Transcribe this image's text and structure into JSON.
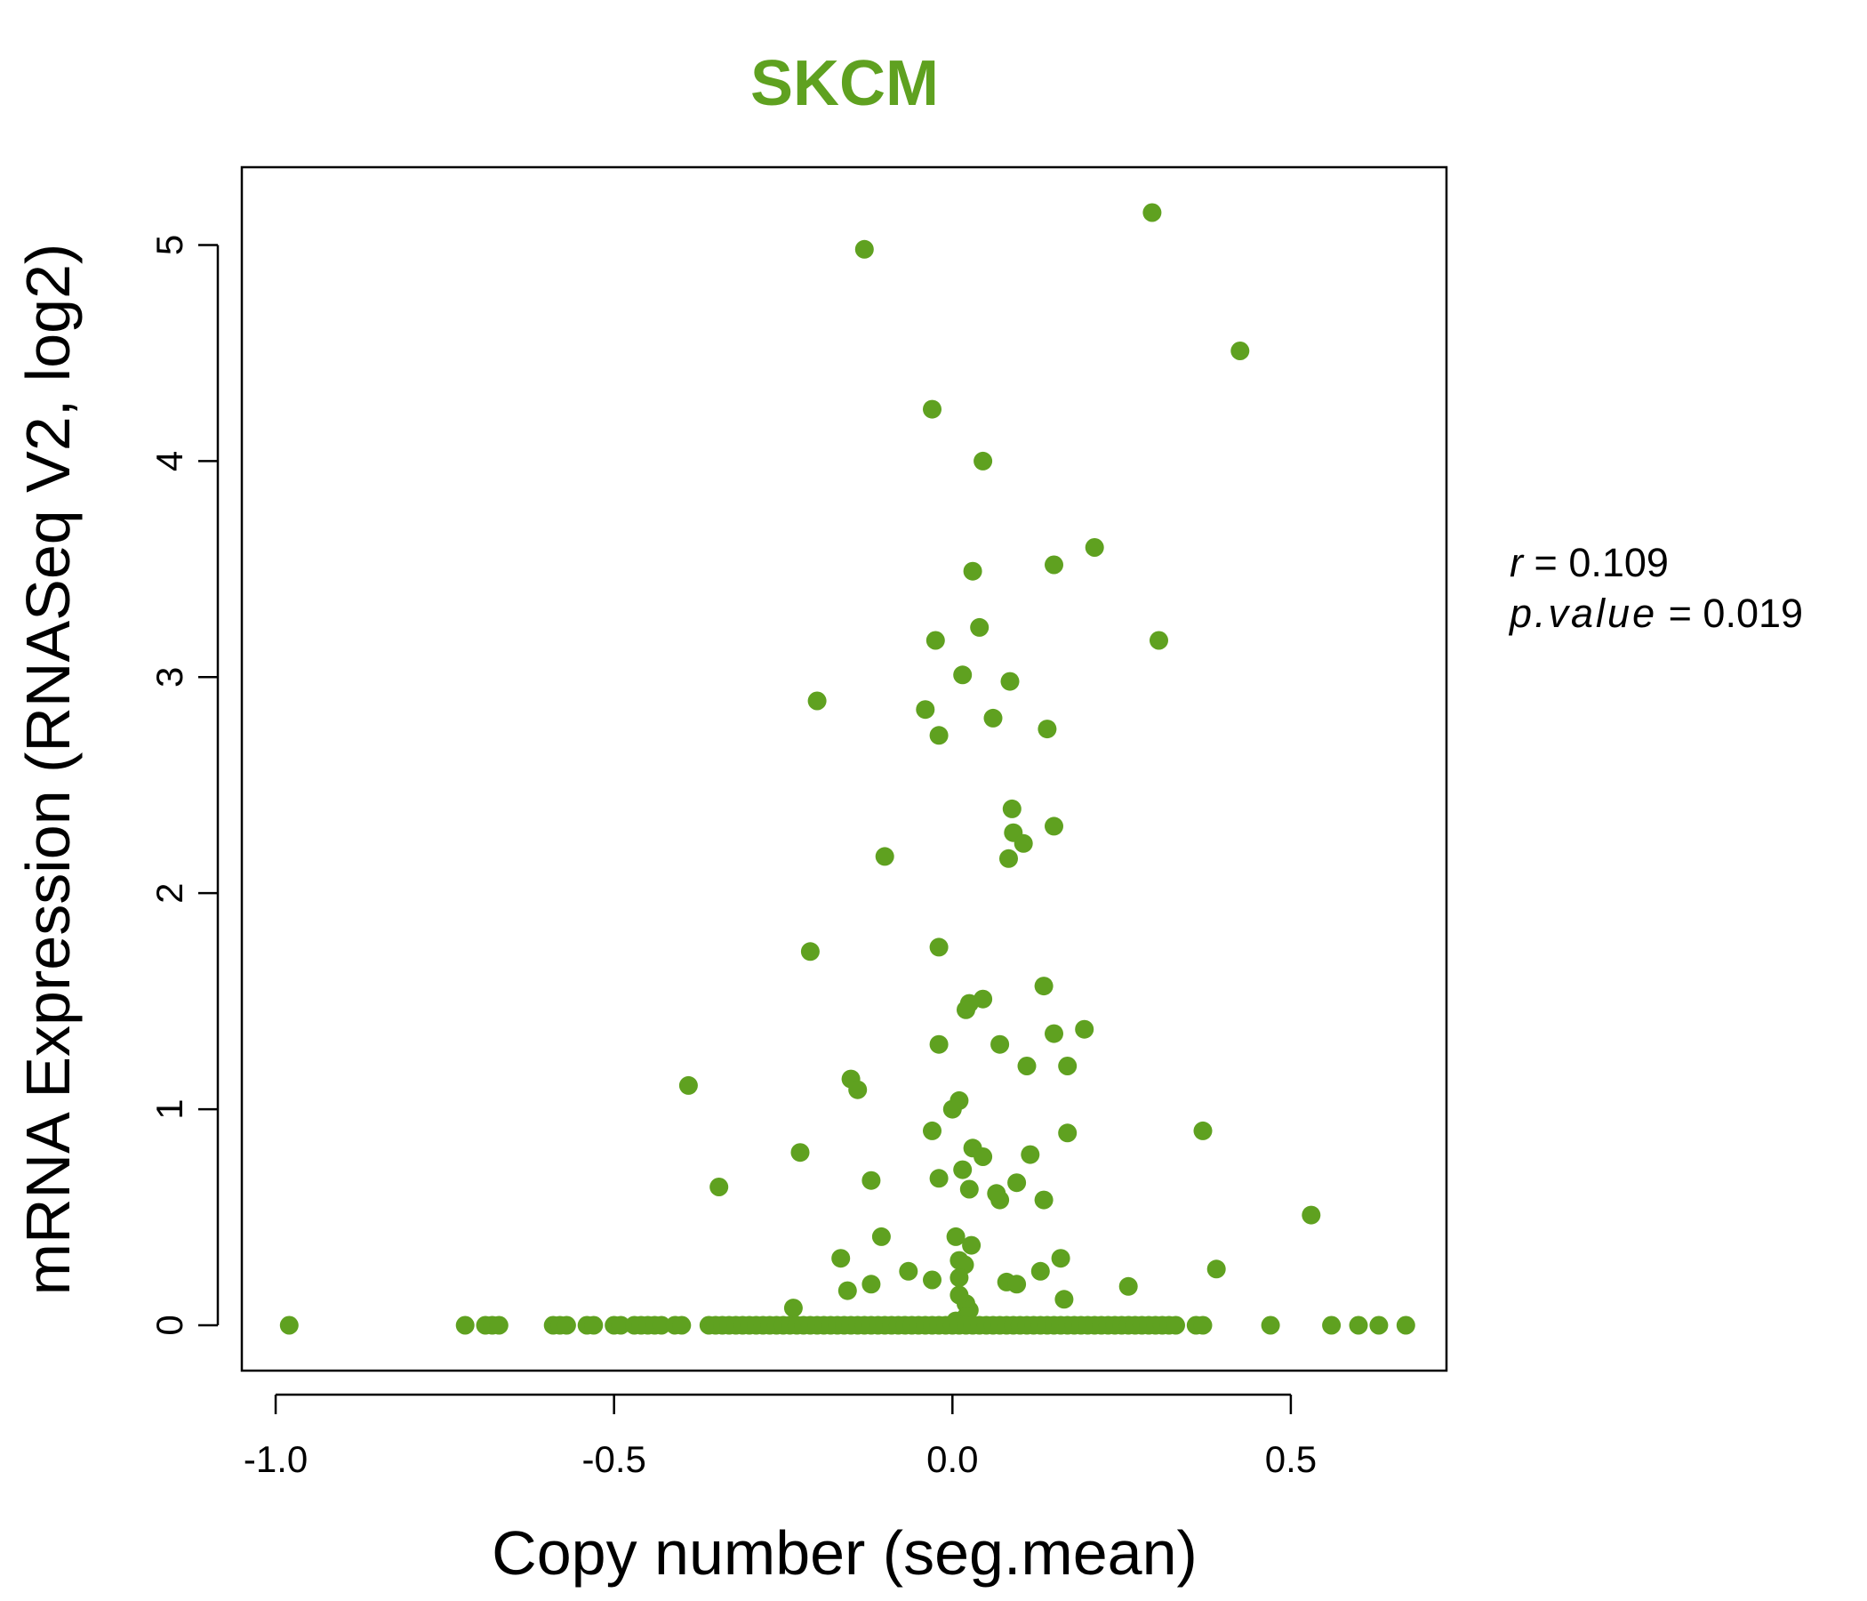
{
  "colors": {
    "accent": "#5fa120",
    "axis": "#000000",
    "background": "#ffffff"
  },
  "chart_data": {
    "type": "scatter",
    "title": "SKCM",
    "xlabel": "Copy number (seg.mean)",
    "ylabel": "mRNA Expression (RNASeq V2, log2)",
    "xlim": [
      -1.05,
      0.73
    ],
    "ylim": [
      -0.21,
      5.36
    ],
    "xticks": [
      -1.0,
      -0.5,
      0.0,
      0.5
    ],
    "xtick_labels": [
      "-1.0",
      "-0.5",
      "0.0",
      "0.5"
    ],
    "yticks": [
      0,
      1,
      2,
      3,
      4,
      5
    ],
    "ytick_labels": [
      "0",
      "1",
      "2",
      "3",
      "4",
      "5"
    ],
    "grid": false,
    "stats": {
      "r_label": "r",
      "r_value": "0.109",
      "p_label": "p.value",
      "p_value": "0.019"
    },
    "points": [
      [
        -0.13,
        4.98
      ],
      [
        0.295,
        5.15
      ],
      [
        0.425,
        4.51
      ],
      [
        -0.03,
        4.24
      ],
      [
        0.045,
        4.0
      ],
      [
        0.21,
        3.6
      ],
      [
        0.15,
        3.52
      ],
      [
        0.03,
        3.49
      ],
      [
        0.04,
        3.23
      ],
      [
        -0.025,
        3.17
      ],
      [
        0.305,
        3.17
      ],
      [
        0.015,
        3.01
      ],
      [
        0.085,
        2.98
      ],
      [
        -0.2,
        2.89
      ],
      [
        -0.04,
        2.85
      ],
      [
        0.06,
        2.81
      ],
      [
        0.14,
        2.76
      ],
      [
        -0.02,
        2.73
      ],
      [
        0.088,
        2.39
      ],
      [
        0.15,
        2.31
      ],
      [
        0.09,
        2.28
      ],
      [
        0.105,
        2.23
      ],
      [
        0.083,
        2.16
      ],
      [
        -0.1,
        2.17
      ],
      [
        -0.21,
        1.73
      ],
      [
        -0.02,
        1.75
      ],
      [
        0.135,
        1.57
      ],
      [
        0.045,
        1.51
      ],
      [
        0.025,
        1.49
      ],
      [
        0.02,
        1.46
      ],
      [
        0.195,
        1.37
      ],
      [
        0.15,
        1.35
      ],
      [
        -0.02,
        1.3
      ],
      [
        0.07,
        1.3
      ],
      [
        0.11,
        1.2
      ],
      [
        0.17,
        1.2
      ],
      [
        -0.15,
        1.14
      ],
      [
        -0.14,
        1.09
      ],
      [
        -0.39,
        1.11
      ],
      [
        0.01,
        1.04
      ],
      [
        0.0,
        1.0
      ],
      [
        -0.03,
        0.9
      ],
      [
        0.17,
        0.89
      ],
      [
        0.37,
        0.9
      ],
      [
        0.03,
        0.82
      ],
      [
        0.045,
        0.78
      ],
      [
        0.115,
        0.79
      ],
      [
        -0.225,
        0.8
      ],
      [
        0.015,
        0.72
      ],
      [
        -0.02,
        0.68
      ],
      [
        -0.12,
        0.67
      ],
      [
        0.095,
        0.66
      ],
      [
        -0.345,
        0.64
      ],
      [
        0.025,
        0.63
      ],
      [
        0.065,
        0.61
      ],
      [
        0.07,
        0.58
      ],
      [
        0.135,
        0.58
      ],
      [
        0.53,
        0.51
      ],
      [
        -0.105,
        0.41
      ],
      [
        0.005,
        0.41
      ],
      [
        0.028,
        0.37
      ],
      [
        -0.165,
        0.31
      ],
      [
        0.16,
        0.31
      ],
      [
        0.01,
        0.3
      ],
      [
        0.018,
        0.28
      ],
      [
        -0.065,
        0.25
      ],
      [
        0.13,
        0.25
      ],
      [
        0.39,
        0.26
      ],
      [
        0.01,
        0.22
      ],
      [
        -0.03,
        0.21
      ],
      [
        0.08,
        0.2
      ],
      [
        0.095,
        0.19
      ],
      [
        -0.12,
        0.19
      ],
      [
        0.26,
        0.18
      ],
      [
        -0.155,
        0.16
      ],
      [
        0.01,
        0.14
      ],
      [
        0.165,
        0.12
      ],
      [
        0.02,
        0.1
      ],
      [
        -0.235,
        0.08
      ],
      [
        0.025,
        0.07
      ],
      [
        0.02,
        0.04
      ],
      [
        0.005,
        0.02
      ],
      [
        -0.98,
        0
      ],
      [
        -0.72,
        0
      ],
      [
        -0.69,
        0
      ],
      [
        -0.68,
        0
      ],
      [
        -0.67,
        0
      ],
      [
        -0.59,
        0
      ],
      [
        -0.58,
        0
      ],
      [
        -0.57,
        0
      ],
      [
        -0.54,
        0
      ],
      [
        -0.53,
        0
      ],
      [
        -0.5,
        0
      ],
      [
        -0.49,
        0
      ],
      [
        -0.47,
        0
      ],
      [
        -0.46,
        0
      ],
      [
        -0.45,
        0
      ],
      [
        -0.44,
        0
      ],
      [
        -0.43,
        0
      ],
      [
        -0.41,
        0
      ],
      [
        -0.4,
        0
      ],
      [
        -0.36,
        0
      ],
      [
        -0.35,
        0
      ],
      [
        -0.34,
        0
      ],
      [
        -0.33,
        0
      ],
      [
        -0.32,
        0
      ],
      [
        -0.31,
        0
      ],
      [
        -0.3,
        0
      ],
      [
        -0.29,
        0
      ],
      [
        -0.28,
        0
      ],
      [
        -0.27,
        0
      ],
      [
        -0.26,
        0
      ],
      [
        -0.25,
        0
      ],
      [
        -0.24,
        0
      ],
      [
        -0.23,
        0
      ],
      [
        -0.22,
        0
      ],
      [
        -0.21,
        0
      ],
      [
        -0.2,
        0
      ],
      [
        -0.19,
        0
      ],
      [
        -0.18,
        0
      ],
      [
        -0.17,
        0
      ],
      [
        -0.16,
        0
      ],
      [
        -0.15,
        0
      ],
      [
        -0.14,
        0
      ],
      [
        -0.13,
        0
      ],
      [
        -0.12,
        0
      ],
      [
        -0.11,
        0
      ],
      [
        -0.1,
        0
      ],
      [
        -0.09,
        0
      ],
      [
        -0.08,
        0
      ],
      [
        -0.07,
        0
      ],
      [
        -0.06,
        0
      ],
      [
        -0.05,
        0
      ],
      [
        -0.04,
        0
      ],
      [
        -0.03,
        0
      ],
      [
        -0.02,
        0
      ],
      [
        -0.01,
        0
      ],
      [
        0.0,
        0
      ],
      [
        0.01,
        0
      ],
      [
        0.02,
        0
      ],
      [
        0.03,
        0
      ],
      [
        0.04,
        0
      ],
      [
        0.05,
        0
      ],
      [
        0.06,
        0
      ],
      [
        0.07,
        0
      ],
      [
        0.08,
        0
      ],
      [
        0.09,
        0
      ],
      [
        0.1,
        0
      ],
      [
        0.11,
        0
      ],
      [
        0.12,
        0
      ],
      [
        0.13,
        0
      ],
      [
        0.14,
        0
      ],
      [
        0.15,
        0
      ],
      [
        0.16,
        0
      ],
      [
        0.17,
        0
      ],
      [
        0.18,
        0
      ],
      [
        0.19,
        0
      ],
      [
        0.2,
        0
      ],
      [
        0.21,
        0
      ],
      [
        0.22,
        0
      ],
      [
        0.23,
        0
      ],
      [
        0.24,
        0
      ],
      [
        0.25,
        0
      ],
      [
        0.26,
        0
      ],
      [
        0.27,
        0
      ],
      [
        0.28,
        0
      ],
      [
        0.29,
        0
      ],
      [
        0.3,
        0
      ],
      [
        0.31,
        0
      ],
      [
        0.32,
        0
      ],
      [
        0.33,
        0
      ],
      [
        0.36,
        0
      ],
      [
        0.37,
        0
      ],
      [
        0.47,
        0
      ],
      [
        0.56,
        0
      ],
      [
        0.6,
        0
      ],
      [
        0.63,
        0
      ],
      [
        0.67,
        0
      ]
    ]
  }
}
